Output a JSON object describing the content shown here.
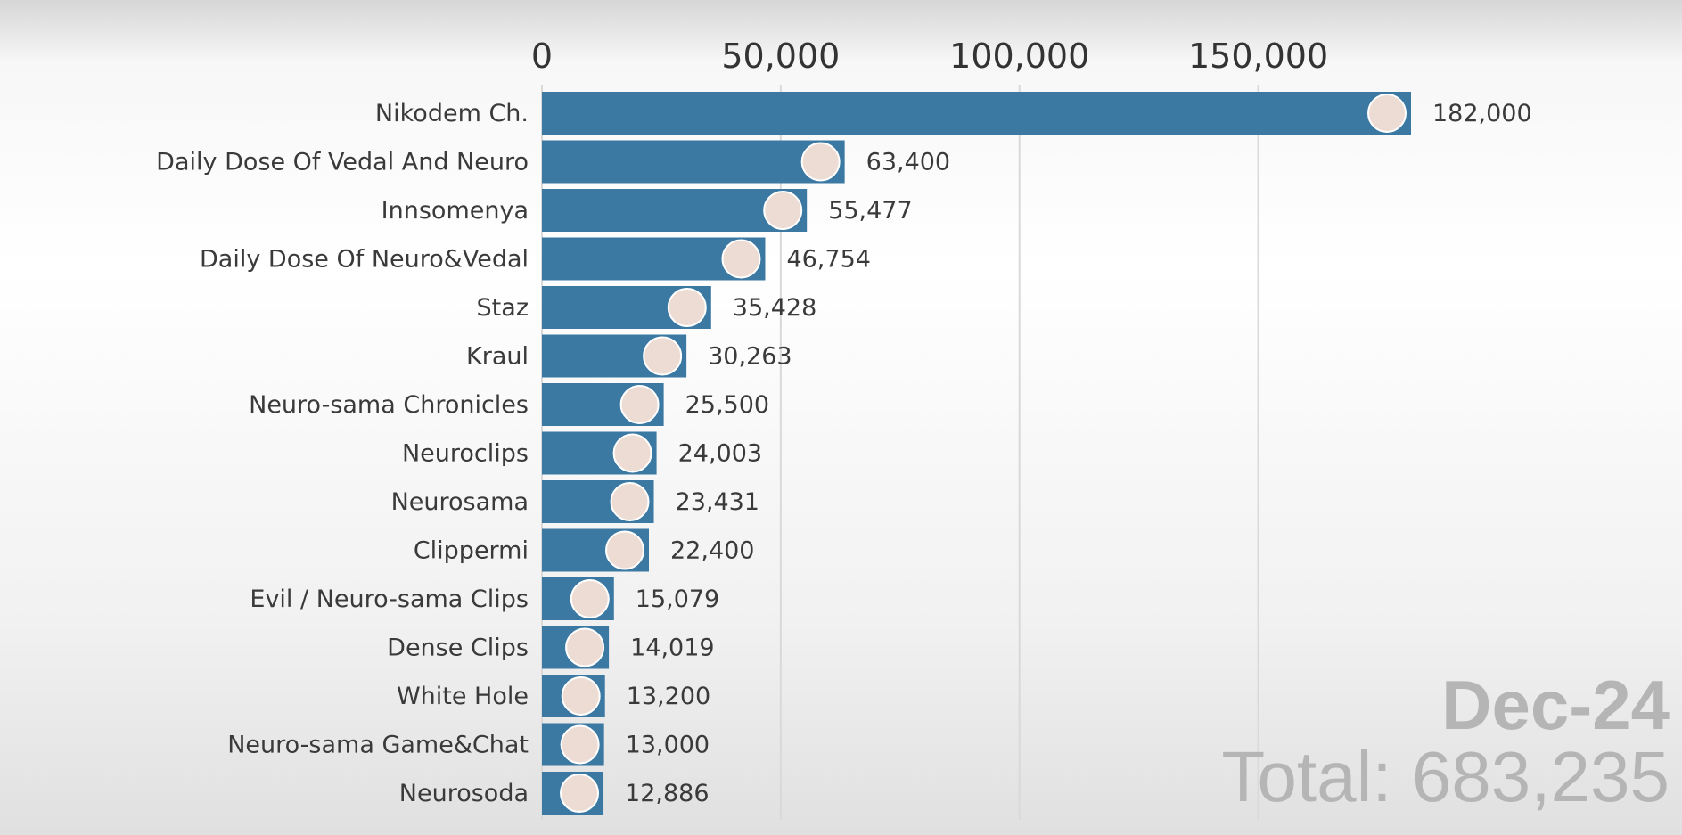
{
  "chart_data": {
    "type": "bar",
    "orientation": "horizontal",
    "categories": [
      "Nikodem Ch.",
      "Daily Dose Of Vedal And Neuro",
      "Innsomenya",
      "Daily Dose Of Neuro&Vedal",
      "Staz",
      "Kraul",
      "Neuro-sama Chronicles",
      "Neuroclips",
      "Neurosama",
      "Clippermi",
      "Evil / Neuro-sama Clips",
      "Dense Clips",
      "White Hole",
      "Neuro-sama Game&Chat",
      "Neurosoda"
    ],
    "values": [
      182000,
      63400,
      55477,
      46754,
      35428,
      30263,
      25500,
      24003,
      23431,
      22400,
      15079,
      14019,
      13200,
      13000,
      12886
    ],
    "value_labels": [
      "182,000",
      "63,400",
      "55,477",
      "46,754",
      "35,428",
      "30,263",
      "25,500",
      "24,003",
      "23,431",
      "22,400",
      "15,079",
      "14,019",
      "13,200",
      "13,000",
      "12,886"
    ],
    "x_ticks": [
      0,
      50000,
      100000,
      150000
    ],
    "x_tick_labels": [
      "0",
      "50,000",
      "100,000",
      "150,000"
    ],
    "xlim": [
      0,
      200000
    ],
    "axis_position": "top",
    "grid": true,
    "bar_color": "#3b78a2",
    "period": "Dec-24",
    "total_text": "Total: 683,235"
  },
  "colors": {
    "bar": "#3b78a2",
    "text": "#3a3a3a",
    "watermark": "#b5b5b5",
    "grid": "#d9d9d9"
  }
}
